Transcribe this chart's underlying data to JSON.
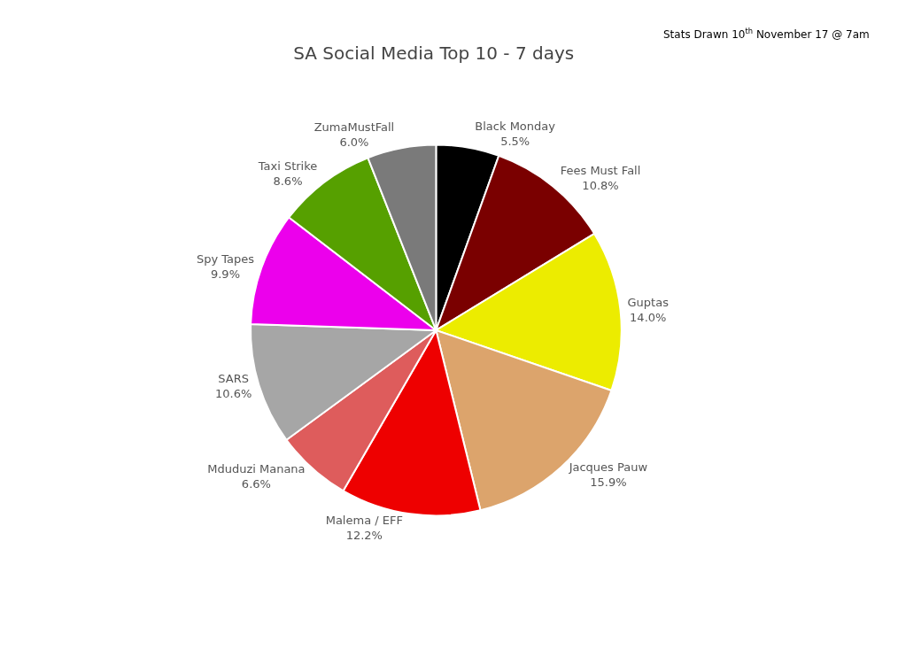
{
  "chart_data": {
    "type": "pie",
    "title": "SA Social Media Top 10 - 7 days",
    "categories": [
      "Black Monday",
      "Fees Must Fall",
      "Guptas",
      "Jacques Pauw",
      "Malema / EFF",
      "Mduduzi Manana",
      "SARS",
      "Spy Tapes",
      "Taxi Strike",
      "ZumaMustFall"
    ],
    "values": [
      5.5,
      10.8,
      14.0,
      15.9,
      12.2,
      6.6,
      10.6,
      9.9,
      8.6,
      6.0
    ],
    "value_labels": [
      "5.5%",
      "10.8%",
      "14.0%",
      "15.9%",
      "12.2%",
      "6.6%",
      "10.6%",
      "9.9%",
      "8.6%",
      "6.0%"
    ],
    "colors": [
      "#000000",
      "#7a0000",
      "#ecec00",
      "#dca46c",
      "#ee0000",
      "#de5c5c",
      "#a6a6a6",
      "#ec00ec",
      "#56a000",
      "#7a7a7a"
    ],
    "annotations": [
      "Stats Drawn 10$^{th}$ November 17 @ 7am"
    ],
    "legend": false
  }
}
